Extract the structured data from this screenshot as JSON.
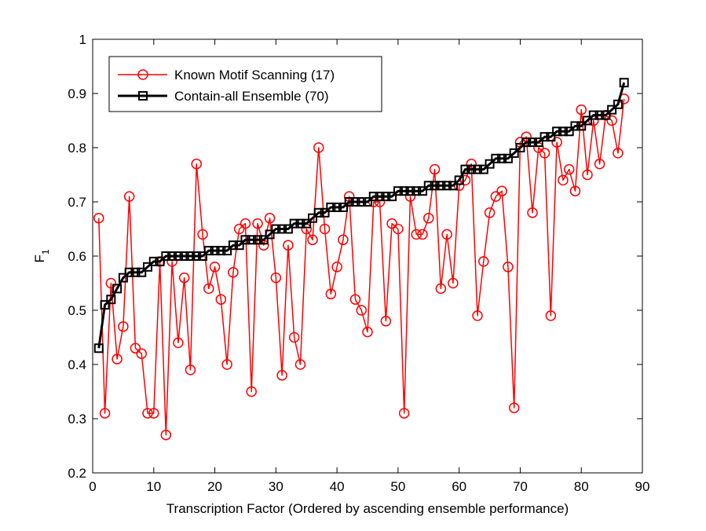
{
  "chart_data": {
    "type": "line",
    "title": "",
    "xlabel": "Transcription Factor (Ordered by ascending ensemble performance)",
    "ylabel": "F",
    "ylabel_subscript": "1",
    "xlim": [
      0,
      90
    ],
    "ylim": [
      0.2,
      1
    ],
    "xticks": [
      0,
      10,
      20,
      30,
      40,
      50,
      60,
      70,
      80,
      90
    ],
    "yticks": [
      0.2,
      0.3,
      0.4,
      0.5,
      0.6,
      0.7,
      0.8,
      0.9,
      1
    ],
    "ytick_labels": [
      "0.2",
      "0.3",
      "0.4",
      "0.5",
      "0.6",
      "0.7",
      "0.8",
      "0.9",
      "1"
    ],
    "grid": false,
    "legend_position": "top-left",
    "x": [
      1,
      2,
      3,
      4,
      5,
      6,
      7,
      8,
      9,
      10,
      11,
      12,
      13,
      14,
      15,
      16,
      17,
      18,
      19,
      20,
      21,
      22,
      23,
      24,
      25,
      26,
      27,
      28,
      29,
      30,
      31,
      32,
      33,
      34,
      35,
      36,
      37,
      38,
      39,
      40,
      41,
      42,
      43,
      44,
      45,
      46,
      47,
      48,
      49,
      50,
      51,
      52,
      53,
      54,
      55,
      56,
      57,
      58,
      59,
      60,
      61,
      62,
      63,
      64,
      65,
      66,
      67,
      68,
      69,
      70,
      71,
      72,
      73,
      74,
      75,
      76,
      77,
      78,
      79,
      80,
      81,
      82,
      83,
      84,
      85,
      86,
      87
    ],
    "series": [
      {
        "name": "Known Motif Scanning (17)",
        "color": "#ff0000",
        "marker": "circle",
        "values": [
          0.67,
          0.31,
          0.55,
          0.41,
          0.47,
          0.71,
          0.43,
          0.42,
          0.31,
          0.31,
          0.59,
          0.27,
          0.59,
          0.44,
          0.56,
          0.39,
          0.77,
          0.64,
          0.54,
          0.58,
          0.52,
          0.4,
          0.57,
          0.65,
          0.66,
          0.35,
          0.66,
          0.62,
          0.67,
          0.56,
          0.38,
          0.62,
          0.45,
          0.4,
          0.65,
          0.63,
          0.8,
          0.65,
          0.53,
          0.58,
          0.63,
          0.71,
          0.52,
          0.5,
          0.46,
          0.7,
          0.7,
          0.48,
          0.66,
          0.65,
          0.31,
          0.71,
          0.64,
          0.64,
          0.67,
          0.76,
          0.54,
          0.64,
          0.55,
          0.73,
          0.74,
          0.77,
          0.49,
          0.59,
          0.68,
          0.71,
          0.72,
          0.58,
          0.32,
          0.81,
          0.82,
          0.68,
          0.8,
          0.79,
          0.49,
          0.81,
          0.74,
          0.76,
          0.72,
          0.87,
          0.75,
          0.85,
          0.77,
          0.86,
          0.85,
          0.79,
          0.89
        ]
      },
      {
        "name": "Contain-all Ensemble (70)",
        "color": "#000000",
        "marker": "square",
        "values": [
          0.43,
          0.51,
          0.52,
          0.54,
          0.56,
          0.57,
          0.57,
          0.57,
          0.58,
          0.59,
          0.59,
          0.6,
          0.6,
          0.6,
          0.6,
          0.6,
          0.6,
          0.6,
          0.61,
          0.61,
          0.61,
          0.61,
          0.62,
          0.62,
          0.63,
          0.63,
          0.63,
          0.63,
          0.64,
          0.65,
          0.65,
          0.65,
          0.66,
          0.66,
          0.66,
          0.67,
          0.68,
          0.68,
          0.69,
          0.69,
          0.69,
          0.7,
          0.7,
          0.7,
          0.7,
          0.71,
          0.71,
          0.71,
          0.71,
          0.72,
          0.72,
          0.72,
          0.72,
          0.72,
          0.73,
          0.73,
          0.73,
          0.73,
          0.73,
          0.74,
          0.76,
          0.76,
          0.76,
          0.76,
          0.77,
          0.78,
          0.78,
          0.78,
          0.79,
          0.8,
          0.81,
          0.81,
          0.81,
          0.82,
          0.82,
          0.83,
          0.83,
          0.83,
          0.84,
          0.84,
          0.85,
          0.86,
          0.86,
          0.86,
          0.87,
          0.88,
          0.92
        ]
      }
    ]
  }
}
